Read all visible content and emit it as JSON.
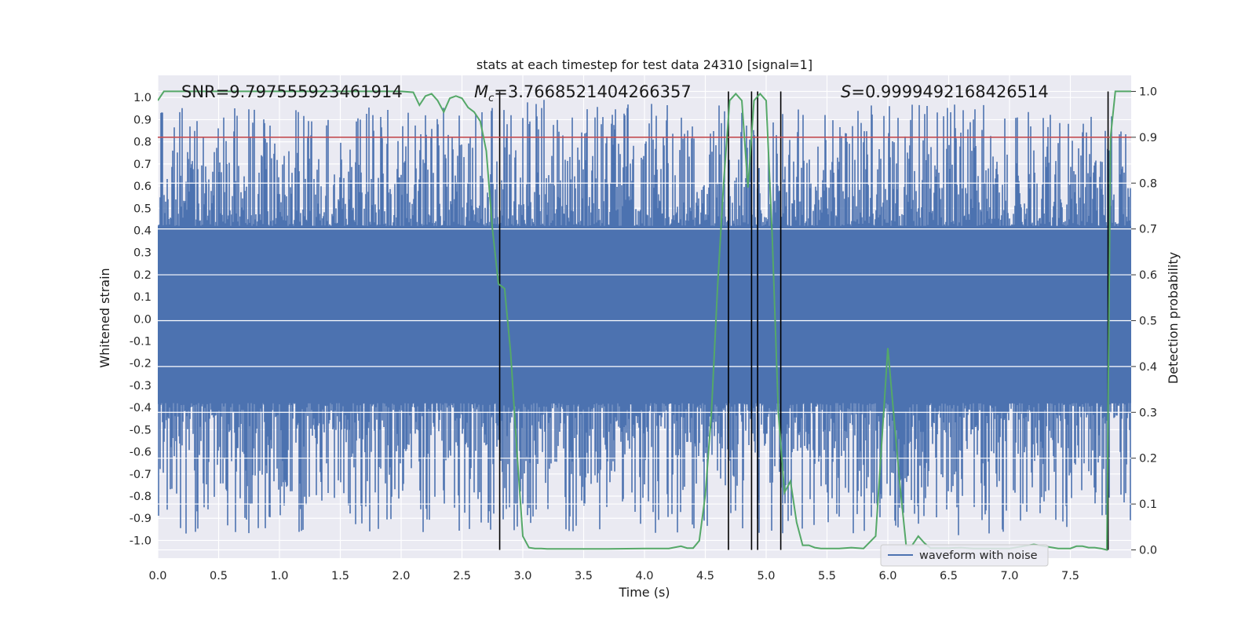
{
  "chart_data": {
    "type": "line",
    "title": "stats at each timestep for test data 24310 [signal=1]",
    "xlabel": "Time (s)",
    "ylabel": "Whitened strain",
    "y2label": "Detection probability",
    "xlim": [
      0.0,
      8.0
    ],
    "ylim": [
      -1.08,
      1.1
    ],
    "y2lim": [
      -0.018,
      1.035
    ],
    "xticks": [
      "0.0",
      "0.5",
      "1.0",
      "1.5",
      "2.0",
      "2.5",
      "3.0",
      "3.5",
      "4.0",
      "4.5",
      "5.0",
      "5.5",
      "6.0",
      "6.5",
      "7.0",
      "7.5"
    ],
    "yticks": [
      "1.0",
      "0.9",
      "0.8",
      "0.7",
      "0.6",
      "0.5",
      "0.4",
      "0.3",
      "0.2",
      "0.1",
      "0.0",
      "-0.1",
      "-0.2",
      "-0.3",
      "-0.4",
      "-0.5",
      "-0.6",
      "-0.7",
      "-0.8",
      "-0.9",
      "-1.0"
    ],
    "y2ticks": [
      "1.0",
      "0.9",
      "0.8",
      "0.7",
      "0.6",
      "0.5",
      "0.4",
      "0.3",
      "0.2",
      "0.1",
      "0.0"
    ],
    "annotations": {
      "snr_label": "SNR=9.797555923461914",
      "mc_symbol": "M",
      "mc_sub": "c",
      "mc_value": "=3.7668521404266357",
      "s_symbol": "S",
      "s_value": "=0.9999492168426514"
    },
    "threshold": {
      "y2": 0.9,
      "color": "#c44e52"
    },
    "vertical_lines": [
      2.81,
      4.69,
      4.88,
      4.93,
      5.12,
      7.81
    ],
    "legend": {
      "label": "waveform with noise",
      "location": "lower-right"
    },
    "waveform": {
      "name": "waveform with noise",
      "color": "#4c72b0",
      "amplitude_peak": 1.0,
      "dense_band": [
        -0.38,
        0.42
      ]
    },
    "detection_probability": {
      "name": "Detection probability",
      "color": "#55a868",
      "x": [
        0.0,
        0.05,
        0.1,
        0.2,
        0.5,
        1.0,
        1.5,
        2.0,
        2.1,
        2.15,
        2.2,
        2.25,
        2.3,
        2.35,
        2.4,
        2.45,
        2.5,
        2.55,
        2.6,
        2.65,
        2.7,
        2.75,
        2.8,
        2.85,
        2.9,
        2.95,
        3.0,
        3.05,
        3.1,
        3.15,
        3.2,
        3.3,
        3.5,
        3.7,
        4.0,
        4.2,
        4.3,
        4.35,
        4.4,
        4.45,
        4.5,
        4.55,
        4.6,
        4.65,
        4.7,
        4.75,
        4.8,
        4.85,
        4.9,
        4.95,
        5.0,
        5.05,
        5.1,
        5.15,
        5.2,
        5.25,
        5.3,
        5.35,
        5.4,
        5.45,
        5.5,
        5.6,
        5.7,
        5.8,
        5.9,
        6.0,
        6.1,
        6.15,
        6.2,
        6.25,
        6.3,
        6.35,
        6.4,
        6.5,
        6.6,
        6.7,
        6.75,
        6.8,
        6.85,
        6.9,
        7.0,
        7.2,
        7.4,
        7.5,
        7.55,
        7.6,
        7.65,
        7.7,
        7.75,
        7.8,
        7.83,
        7.87,
        7.9,
        7.95,
        8.0
      ],
      "y": [
        0.98,
        1.0,
        1.0,
        1.0,
        1.0,
        1.0,
        1.0,
        1.0,
        0.998,
        0.97,
        0.99,
        0.995,
        0.98,
        0.955,
        0.985,
        0.99,
        0.985,
        0.965,
        0.955,
        0.935,
        0.87,
        0.7,
        0.58,
        0.57,
        0.43,
        0.22,
        0.03,
        0.005,
        0.003,
        0.003,
        0.002,
        0.002,
        0.002,
        0.002,
        0.003,
        0.003,
        0.008,
        0.004,
        0.004,
        0.02,
        0.12,
        0.3,
        0.57,
        0.8,
        0.98,
        0.995,
        0.98,
        0.79,
        0.98,
        0.995,
        0.98,
        0.68,
        0.3,
        0.125,
        0.15,
        0.06,
        0.01,
        0.01,
        0.005,
        0.003,
        0.003,
        0.003,
        0.005,
        0.003,
        0.03,
        0.44,
        0.14,
        0.01,
        0.01,
        0.03,
        0.015,
        0.004,
        0.004,
        0.004,
        0.005,
        0.003,
        0.003,
        0.003,
        0.003,
        0.003,
        0.003,
        0.012,
        0.003,
        0.003,
        0.008,
        0.008,
        0.005,
        0.005,
        0.003,
        0.0,
        0.9,
        1.0,
        1.0,
        1.0,
        1.0
      ]
    }
  }
}
